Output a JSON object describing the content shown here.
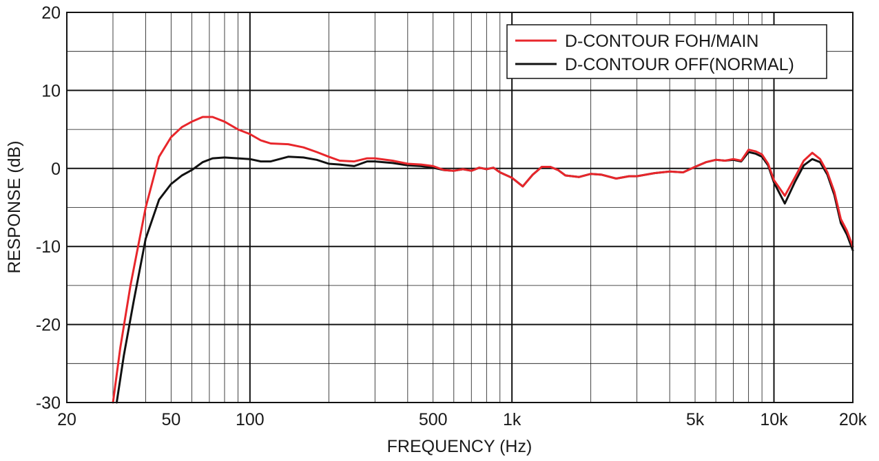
{
  "chart_data": {
    "type": "line",
    "xlabel": "FREQUENCY (Hz)",
    "ylabel": "RESPONSE (dB)",
    "x_scale": "log",
    "xlim": [
      20,
      20000
    ],
    "ylim": [
      -30,
      20
    ],
    "grid": true,
    "legend_position": "top-right",
    "x_ticks": [
      {
        "value": 20,
        "label": "20"
      },
      {
        "value": 50,
        "label": "50"
      },
      {
        "value": 100,
        "label": "100"
      },
      {
        "value": 500,
        "label": "500"
      },
      {
        "value": 1000,
        "label": "1k"
      },
      {
        "value": 5000,
        "label": "5k"
      },
      {
        "value": 10000,
        "label": "10k"
      },
      {
        "value": 20000,
        "label": "20k"
      }
    ],
    "y_ticks": [
      {
        "value": 20,
        "label": "20"
      },
      {
        "value": 10,
        "label": "10"
      },
      {
        "value": 0,
        "label": "0"
      },
      {
        "value": -10,
        "label": "-10"
      },
      {
        "value": -20,
        "label": "-20"
      },
      {
        "value": -30,
        "label": "-30"
      }
    ],
    "series": [
      {
        "name": "D-CONTOUR FOH/MAIN",
        "color": "#e8262b",
        "x": [
          30,
          32,
          35,
          40,
          45,
          50,
          55,
          60,
          66,
          72,
          80,
          90,
          100,
          110,
          120,
          140,
          160,
          180,
          200,
          220,
          250,
          280,
          300,
          350,
          400,
          450,
          500,
          550,
          600,
          650,
          700,
          750,
          800,
          850,
          900,
          1000,
          1100,
          1200,
          1300,
          1400,
          1500,
          1600,
          1700,
          1800,
          2000,
          2200,
          2500,
          2800,
          3000,
          3500,
          4000,
          4500,
          5000,
          5500,
          6000,
          6500,
          7000,
          7500,
          8000,
          8500,
          9000,
          9500,
          10000,
          11000,
          12000,
          13000,
          14000,
          15000,
          16000,
          17000,
          18000,
          19000,
          20000
        ],
        "y": [
          -30,
          -23,
          -15,
          -5,
          1.5,
          4.0,
          5.3,
          6.0,
          6.6,
          6.6,
          6.0,
          5.0,
          4.4,
          3.6,
          3.2,
          3.1,
          2.7,
          2.1,
          1.5,
          1.0,
          0.9,
          1.3,
          1.3,
          1.0,
          0.6,
          0.5,
          0.3,
          -0.2,
          -0.3,
          -0.1,
          -0.3,
          0.1,
          -0.1,
          0.1,
          -0.5,
          -1.2,
          -2.3,
          -0.8,
          0.2,
          0.2,
          -0.2,
          -0.9,
          -1.0,
          -1.1,
          -0.7,
          -0.8,
          -1.3,
          -1.0,
          -1.0,
          -0.6,
          -0.4,
          -0.5,
          0.2,
          0.8,
          1.1,
          1.0,
          1.2,
          1.0,
          2.4,
          2.2,
          1.8,
          0.6,
          -1.5,
          -3.5,
          -1.2,
          1.0,
          2.0,
          1.2,
          -0.5,
          -3.0,
          -6.5,
          -8.0,
          -10.0
        ]
      },
      {
        "name": "D-CONTOUR OFF(NORMAL)",
        "color": "#111111",
        "x": [
          31,
          33,
          36,
          40,
          45,
          50,
          55,
          60,
          66,
          72,
          80,
          90,
          100,
          110,
          120,
          140,
          160,
          180,
          200,
          220,
          250,
          280,
          300,
          350,
          400,
          450,
          500,
          550,
          600,
          650,
          700,
          750,
          800,
          850,
          900,
          1000,
          1100,
          1200,
          1300,
          1400,
          1500,
          1600,
          1700,
          1800,
          2000,
          2200,
          2500,
          2800,
          3000,
          3500,
          4000,
          4500,
          5000,
          5500,
          6000,
          6500,
          7000,
          7500,
          8000,
          8500,
          9000,
          9500,
          10000,
          11000,
          12000,
          13000,
          14000,
          15000,
          16000,
          17000,
          18000,
          19000,
          20000
        ],
        "y": [
          -30,
          -24,
          -17,
          -9,
          -4,
          -2,
          -0.9,
          -0.2,
          0.8,
          1.3,
          1.4,
          1.3,
          1.2,
          0.9,
          0.9,
          1.5,
          1.4,
          1.1,
          0.6,
          0.5,
          0.3,
          0.9,
          0.9,
          0.7,
          0.4,
          0.3,
          0.1,
          -0.2,
          -0.3,
          -0.1,
          -0.3,
          0.1,
          -0.1,
          0.1,
          -0.5,
          -1.2,
          -2.3,
          -0.8,
          0.2,
          0.2,
          -0.2,
          -0.9,
          -1.0,
          -1.1,
          -0.7,
          -0.8,
          -1.3,
          -1.0,
          -1.0,
          -0.6,
          -0.4,
          -0.5,
          0.2,
          0.8,
          1.1,
          1.0,
          1.1,
          0.9,
          2.1,
          1.9,
          1.5,
          0.4,
          -1.8,
          -4.5,
          -1.8,
          0.4,
          1.2,
          0.8,
          -0.8,
          -3.4,
          -7.0,
          -8.5,
          -10.5
        ]
      }
    ]
  }
}
